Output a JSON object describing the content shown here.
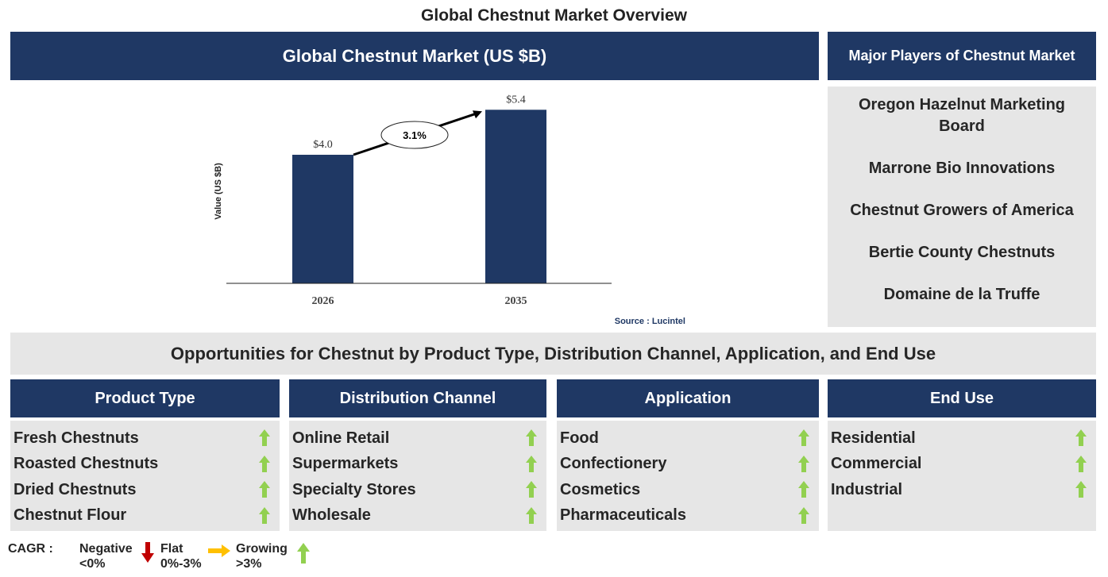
{
  "title": "Global Chestnut Market Overview",
  "market_header": "Global Chestnut Market (US $B)",
  "players_header": "Major Players of Chestnut Market",
  "players": [
    "Oregon Hazelnut Marketing Board",
    "Marrone Bio Innovations",
    "Chestnut Growers of America",
    "Bertie County Chestnuts",
    "Domaine de la Truffe"
  ],
  "opportunities_title": "Opportunities for Chestnut by Product Type, Distribution Channel, Application, and End Use",
  "segments": [
    {
      "header": "Product Type",
      "items": [
        "Fresh Chestnuts",
        "Roasted Chestnuts",
        "Dried Chestnuts",
        "Chestnut Flour"
      ]
    },
    {
      "header": "Distribution Channel",
      "items": [
        "Online Retail",
        "Supermarkets",
        "Specialty Stores",
        "Wholesale"
      ]
    },
    {
      "header": "Application",
      "items": [
        "Food",
        "Confectionery",
        "Cosmetics",
        "Pharmaceuticals"
      ]
    },
    {
      "header": "End Use",
      "items": [
        "Residential",
        "Commercial",
        "Industrial"
      ]
    }
  ],
  "legend": {
    "cagr": "CAGR :",
    "negative": "Negative",
    "negative_range": "<0%",
    "flat": "Flat",
    "flat_range": "0%-3%",
    "growing": "Growing",
    "growing_range": ">3%"
  },
  "colors": {
    "navy": "#1f3864",
    "grey": "#e6e6e6",
    "growing": "#92d050",
    "flat": "#ffc000",
    "negative": "#c00000"
  },
  "chart_data": {
    "type": "bar",
    "categories": [
      "2026",
      "2035"
    ],
    "values": [
      4.0,
      5.4
    ],
    "data_labels": [
      "$4.0",
      "$5.4"
    ],
    "ylabel": "Value (US $B)",
    "cagr_label": "3.1%",
    "source": "Source : Lucintel",
    "grid": false
  }
}
